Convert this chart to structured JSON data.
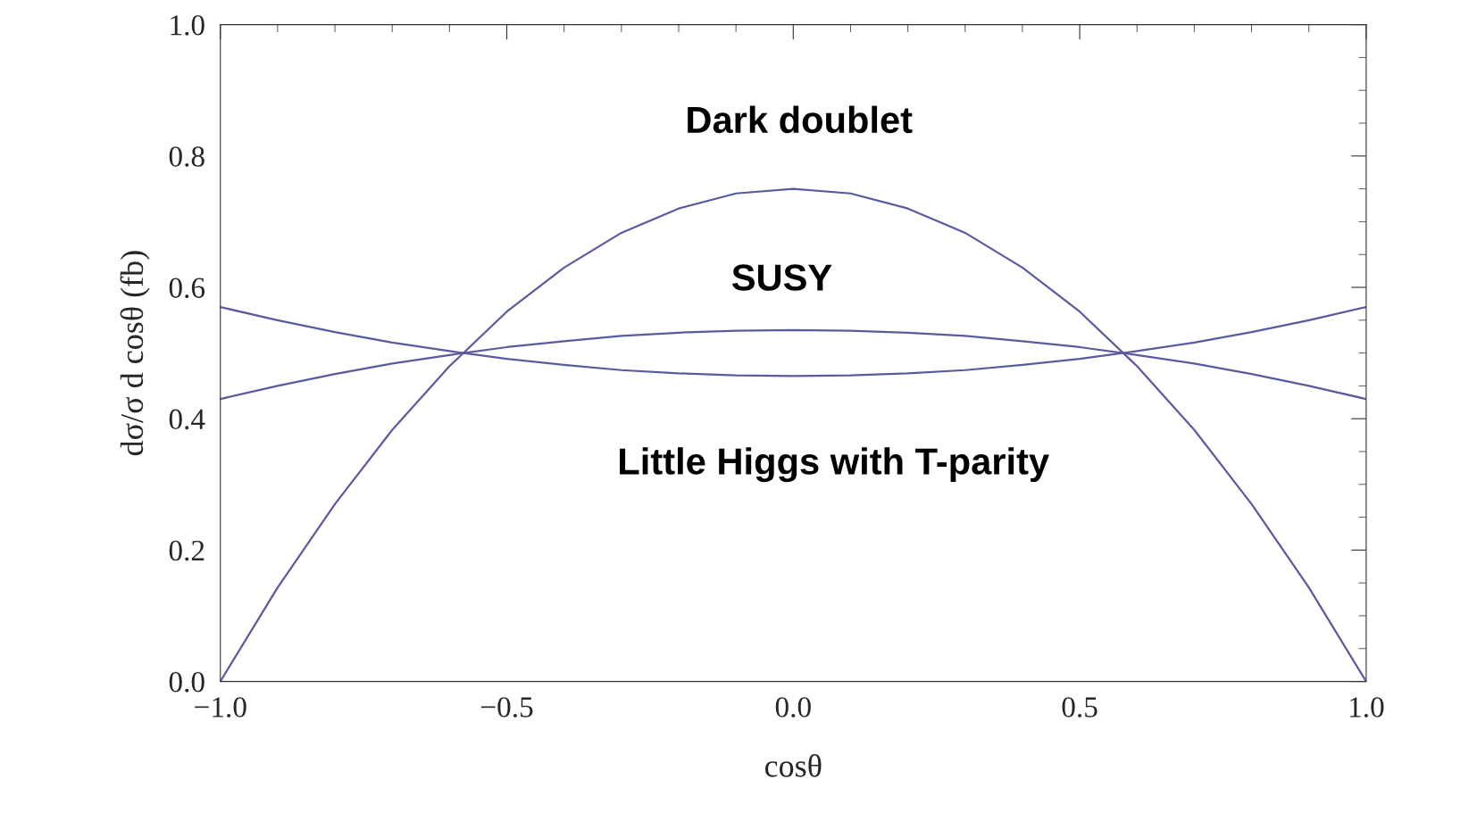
{
  "chart_data": {
    "type": "line",
    "xlabel": "cosθ",
    "ylabel": "dσ/σ d cosθ (fb)",
    "x": [
      -1.0,
      -0.9,
      -0.8,
      -0.7,
      -0.6,
      -0.5,
      -0.4,
      -0.3,
      -0.2,
      -0.1,
      0.0,
      0.1,
      0.2,
      0.3,
      0.4,
      0.5,
      0.6,
      0.7,
      0.8,
      0.9,
      1.0
    ],
    "series": [
      {
        "color": "#5a5a9e",
        "values": [
          0,
          0.143,
          0.27,
          0.383,
          0.48,
          0.563,
          0.63,
          0.683,
          0.72,
          0.743,
          0.75,
          0.743,
          0.72,
          0.683,
          0.63,
          0.563,
          0.48,
          0.383,
          0.27,
          0.143,
          0
        ]
      },
      {
        "color": "#5a5a9e",
        "values": [
          0.43,
          0.45,
          0.468,
          0.484,
          0.497,
          0.509,
          0.518,
          0.526,
          0.531,
          0.534,
          0.535,
          0.534,
          0.531,
          0.526,
          0.518,
          0.509,
          0.497,
          0.484,
          0.468,
          0.45,
          0.43
        ]
      },
      {
        "color": "#5a5a9e",
        "values": [
          0.57,
          0.55,
          0.532,
          0.516,
          0.503,
          0.491,
          0.482,
          0.474,
          0.469,
          0.466,
          0.465,
          0.466,
          0.469,
          0.474,
          0.482,
          0.491,
          0.503,
          0.516,
          0.532,
          0.55,
          0.57
        ]
      }
    ],
    "xlim": [
      -1.0,
      1.0
    ],
    "ylim": [
      0.0,
      1.0
    ],
    "xticks": [
      {
        "value": -1.0,
        "label": "−1.0"
      },
      {
        "value": -0.5,
        "label": "−0.5"
      },
      {
        "value": 0.0,
        "label": "0.0"
      },
      0.5,
      {
        "value": 1.0,
        "label": "1.0"
      }
    ],
    "yticks": [
      {
        "value": 0.0,
        "label": "0.0"
      },
      0.2,
      0.4,
      0.6,
      0.8,
      {
        "value": 1.0,
        "label": "1.0"
      }
    ],
    "annotations": [
      "Dark doublet",
      "SUSY",
      "Little Higgs with T-parity"
    ],
    "grid": false,
    "legend": false,
    "marker": "none",
    "line_style": "solid"
  }
}
